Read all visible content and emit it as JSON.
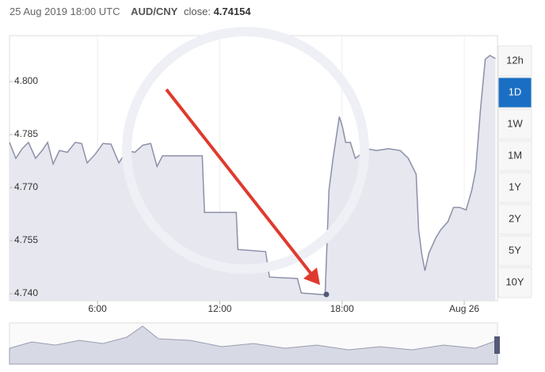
{
  "header": {
    "date": "25 Aug 2019 18:00 UTC",
    "pair": "AUD/CNY",
    "close_label": "close:",
    "close": "4.74154"
  },
  "range_buttons": {
    "options": [
      "12h",
      "1D",
      "1W",
      "1M",
      "1Y",
      "2Y",
      "5Y",
      "10Y"
    ],
    "selected": 1
  },
  "chart_data": {
    "type": "area",
    "x": [
      1.68,
      1.99,
      2.3,
      2.61,
      2.96,
      3.28,
      3.55,
      3.82,
      4.13,
      4.52,
      4.91,
      5.22,
      5.49,
      5.88,
      6.27,
      6.66,
      7.05,
      7.44,
      7.83,
      8.22,
      8.61,
      8.92,
      9.19,
      11.14,
      11.25,
      12.81,
      12.89,
      14.25,
      14.44,
      15.81,
      16.0,
      17.17,
      17.36,
      17.56,
      17.87,
      18.02,
      18.18,
      18.41,
      18.65,
      18.92,
      19.19,
      19.7,
      20.28,
      20.86,
      21.25,
      21.64,
      21.76,
      21.91,
      22.07,
      22.26,
      22.61,
      22.85,
      23.2,
      23.47,
      23.78,
      24.09,
      24.37,
      24.56,
      24.79,
      25.03,
      25.26,
      25.53
    ],
    "series": [
      {
        "name": "AUD/CNY",
        "color": "#8c90a8",
        "values": [
          4.7828,
          4.7783,
          4.781,
          4.7828,
          4.7783,
          4.7805,
          4.7828,
          4.7767,
          4.7805,
          4.78,
          4.7828,
          4.7825,
          4.777,
          4.7794,
          4.7825,
          4.7823,
          4.777,
          4.7805,
          4.78,
          4.782,
          4.7825,
          4.776,
          4.779,
          4.779,
          4.763,
          4.763,
          4.7525,
          4.7519,
          4.7447,
          4.7443,
          4.7402,
          4.7397,
          4.7693,
          4.7783,
          4.7901,
          4.7872,
          4.7828,
          4.7828,
          4.7783,
          4.7794,
          4.781,
          4.7805,
          4.781,
          4.7805,
          4.7783,
          4.7738,
          4.7581,
          4.7514,
          4.7465,
          4.7514,
          4.7559,
          4.7581,
          4.7604,
          4.7644,
          4.7644,
          4.7637,
          4.7693,
          4.7749,
          4.7917,
          4.8063,
          4.8074,
          4.8065
        ]
      }
    ],
    "xlim": [
      1.68,
      25.63
    ],
    "xticks": [
      {
        "value": 6,
        "label": "6:00"
      },
      {
        "value": 12,
        "label": "12:00"
      },
      {
        "value": 18,
        "label": "18:00"
      },
      {
        "value": 24,
        "label": "Aug 26"
      }
    ],
    "ylim": [
      4.738,
      4.813
    ],
    "yticks": [
      {
        "value": 4.74,
        "label": "4.740"
      },
      {
        "value": 4.755,
        "label": "4.755"
      },
      {
        "value": 4.77,
        "label": "4.770"
      },
      {
        "value": 4.785,
        "label": "4.785"
      },
      {
        "value": 4.8,
        "label": "4.800"
      }
    ],
    "grid": true
  }
}
